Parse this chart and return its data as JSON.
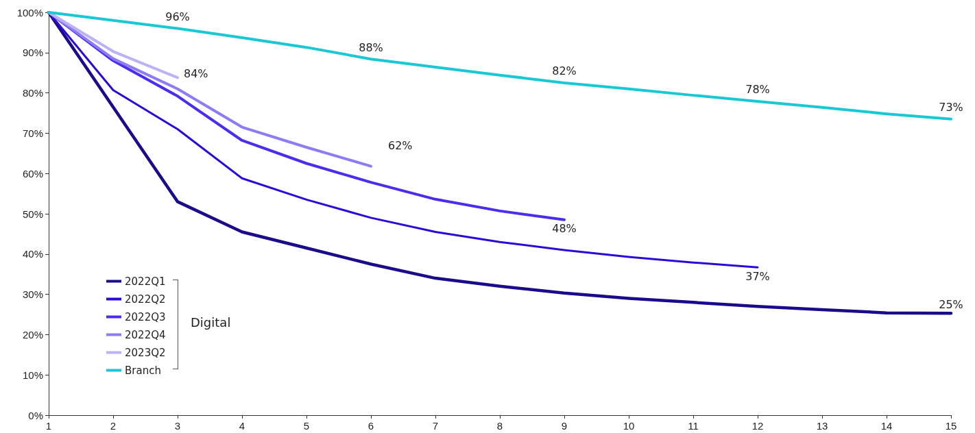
{
  "chart_data": {
    "type": "line",
    "x": [
      1,
      2,
      3,
      4,
      5,
      6,
      7,
      8,
      9,
      10,
      11,
      12,
      13,
      14,
      15
    ],
    "series": [
      {
        "name": "2022Q1",
        "color": "#1a0a8c",
        "values": [
          100,
          76.5,
          53,
          45.5,
          41.5,
          37.5,
          34,
          32,
          30.3,
          29,
          28,
          27,
          26.2,
          25.4,
          25.3
        ],
        "value_labels": [
          null,
          null,
          null,
          null,
          null,
          null,
          null,
          null,
          null,
          null,
          null,
          null,
          null,
          null,
          "25%"
        ]
      },
      {
        "name": "2022Q2",
        "color": "#2a0ad8",
        "values": [
          100,
          80.7,
          71,
          58.8,
          53.5,
          49,
          45.5,
          43,
          41,
          39.3,
          37.9,
          36.7,
          null,
          null,
          null
        ],
        "value_labels": [
          null,
          null,
          null,
          null,
          null,
          null,
          null,
          null,
          null,
          null,
          null,
          "37%",
          null,
          null,
          null
        ]
      },
      {
        "name": "2022Q3",
        "color": "#4b2cf0",
        "values": [
          100,
          88,
          79.2,
          68.2,
          62.5,
          57.8,
          53.6,
          50.7,
          48.5,
          null,
          null,
          null,
          null,
          null,
          null
        ],
        "value_labels": [
          null,
          null,
          null,
          null,
          null,
          null,
          null,
          null,
          "48%",
          null,
          null,
          null,
          null,
          null,
          null
        ]
      },
      {
        "name": "2022Q4",
        "color": "#8c7cf6",
        "values": [
          100,
          88.5,
          81,
          71.5,
          66.5,
          61.8,
          null,
          null,
          null,
          null,
          null,
          null,
          null,
          null,
          null
        ],
        "value_labels": [
          null,
          null,
          null,
          null,
          null,
          "62%",
          null,
          null,
          null,
          null,
          null,
          null,
          null,
          null,
          null
        ]
      },
      {
        "name": "2023Q2",
        "color": "#bdb2f8",
        "values": [
          100,
          90.3,
          83.8,
          null,
          null,
          null,
          null,
          null,
          null,
          null,
          null,
          null,
          null,
          null,
          null
        ],
        "value_labels": [
          null,
          null,
          "84%",
          null,
          null,
          null,
          null,
          null,
          null,
          null,
          null,
          null,
          null,
          null,
          null
        ]
      },
      {
        "name": "Branch",
        "color": "#18c8d4",
        "values": [
          100,
          98,
          96,
          93.7,
          91.3,
          88.4,
          86.4,
          84.4,
          82.5,
          81,
          79.4,
          77.9,
          76.4,
          74.8,
          73.5
        ],
        "value_labels": [
          null,
          null,
          "96%",
          null,
          null,
          "88%",
          null,
          null,
          "82%",
          null,
          null,
          "78%",
          null,
          null,
          "73%"
        ]
      }
    ],
    "xlim": [
      1,
      15
    ],
    "xticks": [
      1,
      2,
      3,
      4,
      5,
      6,
      7,
      8,
      9,
      10,
      11,
      12,
      13,
      14,
      15
    ],
    "ylim": [
      0,
      100
    ],
    "yticks": [
      {
        "value": 0,
        "label": "0%"
      },
      {
        "value": 10,
        "label": "10%"
      },
      {
        "value": 20,
        "label": "20%"
      },
      {
        "value": 30,
        "label": "30%"
      },
      {
        "value": 40,
        "label": "40%"
      },
      {
        "value": 50,
        "label": "50%"
      },
      {
        "value": 60,
        "label": "60%"
      },
      {
        "value": 70,
        "label": "70%"
      },
      {
        "value": 80,
        "label": "80%"
      },
      {
        "value": 90,
        "label": "90%"
      },
      {
        "value": 100,
        "label": "100%"
      }
    ],
    "annotations": [
      "Digital"
    ],
    "grid": false,
    "legend": "bottom left",
    "marker": "none",
    "line_style": "solid"
  }
}
